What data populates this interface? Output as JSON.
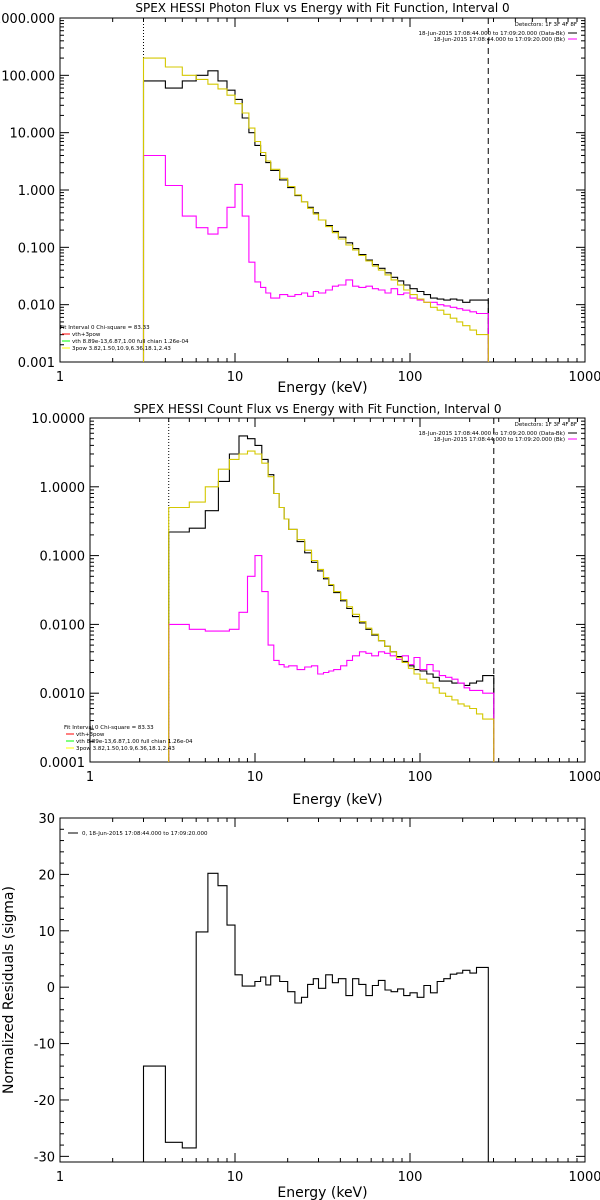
{
  "chart_data": [
    {
      "type": "line",
      "title": "SPEX HESSI Photon Flux vs Energy with Fit Function, Interval 0",
      "xlabel": "Energy (keV)",
      "ylabel": "",
      "xscale": "log",
      "yscale": "log",
      "xlim": [
        1,
        1000
      ],
      "ylim": [
        0.001,
        1000
      ],
      "x_ticks": [
        1,
        10,
        100,
        1000
      ],
      "x_tick_labels": [
        "1",
        "10",
        "100",
        "1000"
      ],
      "y_ticks": [
        0.001,
        0.01,
        0.1,
        1,
        10,
        100,
        1000
      ],
      "y_tick_labels": [
        "0.001",
        "0.010",
        "0.100",
        "1.000",
        "10.000",
        "100.000",
        "1000.000"
      ],
      "detectors": "Detectors: 1F 3F 4F 8F",
      "legend_top": [
        {
          "text": "18-Jun-2015 17:08:44.000 to 17:09:20.000 (Data-Bk)",
          "color": "#000000"
        },
        {
          "text": "18-Jun-2015 17:08:44.000 to 17:09:20.000 (Bk)",
          "color": "#ff00ff"
        }
      ],
      "legend_bottom": [
        {
          "text": "Fit Interval 0   Chi-square = 83.33",
          "color": null
        },
        {
          "text": "vth+3pow",
          "color": "#ff0000"
        },
        {
          "text": "vth 8.89e-13,6.87,1.00  full chian 1.26e-04",
          "color": "#00ff00"
        },
        {
          "text": "3pow 3.82,1.50,10.9,6.36,18.1,2.43",
          "color": "#ffff00"
        }
      ],
      "markers": [
        {
          "x": 3,
          "style": "dotted"
        },
        {
          "x": 280,
          "style": "dashed"
        }
      ],
      "bin_edges": [
        3.0,
        4.0,
        5.0,
        6.0,
        7.0,
        8.0,
        9.0,
        10.0,
        11.0,
        12.0,
        13.0,
        14.0,
        15.0,
        16.0,
        18.0,
        20.0,
        22.0,
        24.0,
        26.0,
        28.0,
        30.0,
        33.0,
        36.0,
        39.0,
        43.0,
        47.0,
        51.0,
        56.0,
        61.0,
        66.0,
        72.0,
        78.0,
        85.0,
        92.0,
        100.0,
        110.0,
        120.0,
        131.0,
        143.0,
        156.0,
        170.0,
        185.0,
        200.0,
        220.0,
        240.0,
        280.0
      ],
      "series": [
        {
          "name": "18-Jun-2015 17:08:44.000 to 17:09:20.000 (Data-Bk)",
          "color": "#000000",
          "values": [
            80,
            60,
            80,
            100,
            120,
            80,
            55,
            38,
            18,
            10,
            6.0,
            4.0,
            3.0,
            2.2,
            1.5,
            1.1,
            0.8,
            0.62,
            0.5,
            0.4,
            0.3,
            0.24,
            0.19,
            0.15,
            0.12,
            0.095,
            0.075,
            0.06,
            0.05,
            0.043,
            0.036,
            0.03,
            0.026,
            0.022,
            0.019,
            0.017,
            0.015,
            0.013,
            0.0125,
            0.012,
            0.0125,
            0.012,
            0.011,
            0.012,
            0.012
          ]
        },
        {
          "name": "18-Jun-2015 17:08:44.000 to 17:09:20.000 (Bk)",
          "color": "#ff00ff",
          "values": [
            4.0,
            1.2,
            0.35,
            0.22,
            0.17,
            0.22,
            0.5,
            1.25,
            0.35,
            0.055,
            0.025,
            0.02,
            0.016,
            0.013,
            0.015,
            0.014,
            0.015,
            0.016,
            0.014,
            0.017,
            0.016,
            0.018,
            0.021,
            0.022,
            0.027,
            0.021,
            0.02,
            0.021,
            0.019,
            0.018,
            0.016,
            0.019,
            0.015,
            0.016,
            0.013,
            0.012,
            0.011,
            0.011,
            0.01,
            0.0095,
            0.009,
            0.0085,
            0.008,
            0.0075,
            0.007
          ]
        },
        {
          "name": "3pow 3.82,1.50,10.9,6.36,18.1,2.43",
          "color": "#d4c800",
          "values": [
            200,
            140,
            100,
            85,
            70,
            58,
            45,
            32,
            22,
            12,
            7.0,
            4.5,
            3.2,
            2.3,
            1.6,
            1.15,
            0.82,
            0.62,
            0.48,
            0.38,
            0.3,
            0.23,
            0.18,
            0.14,
            0.11,
            0.09,
            0.072,
            0.058,
            0.047,
            0.04,
            0.033,
            0.027,
            0.022,
            0.018,
            0.015,
            0.0125,
            0.011,
            0.009,
            0.008,
            0.0068,
            0.0058,
            0.005,
            0.0043,
            0.0036,
            0.003
          ]
        }
      ]
    },
    {
      "type": "line",
      "title": "SPEX HESSI Count Flux vs Energy with Fit Function, Interval 0",
      "xlabel": "Energy (keV)",
      "ylabel": "",
      "xscale": "log",
      "yscale": "log",
      "xlim": [
        1,
        1000
      ],
      "ylim": [
        0.0001,
        10
      ],
      "x_ticks": [
        1,
        10,
        100,
        1000
      ],
      "x_tick_labels": [
        "1",
        "10",
        "100",
        "1000"
      ],
      "y_ticks": [
        0.0001,
        0.001,
        0.01,
        0.1,
        1,
        10
      ],
      "y_tick_labels": [
        "0.0001",
        "0.0010",
        "0.0100",
        "0.1000",
        "1.0000",
        "10.0000"
      ],
      "detectors": "Detectors: 1F 3F 4F 8F",
      "legend_top": [
        {
          "text": "18-Jun-2015 17:08:44.000 to 17:09:20.000 (Data-Bk)",
          "color": "#000000"
        },
        {
          "text": "18-Jun-2015 17:08:44.000 to 17:09:20.000 (Bk)",
          "color": "#ff00ff"
        }
      ],
      "legend_bottom": [
        {
          "text": "Fit Interval 0   Chi-square = 83.33",
          "color": null
        },
        {
          "text": "vth+3pow",
          "color": "#ff0000"
        },
        {
          "text": "vth 8.89e-13,6.87,1.00  full chian 1.26e-04",
          "color": "#00ff00"
        },
        {
          "text": "3pow 3.82,1.50,10.9,6.36,18.1,2.43",
          "color": "#ffff00"
        }
      ],
      "markers": [
        {
          "x": 3,
          "style": "dotted"
        },
        {
          "x": 280,
          "style": "dashed"
        }
      ],
      "bin_edges": [
        3.0,
        4.0,
        5.0,
        6.0,
        7.0,
        8.0,
        9.0,
        10.0,
        11.0,
        12.0,
        13.0,
        14.0,
        15.0,
        16.0,
        18.0,
        20.0,
        22.0,
        24.0,
        26.0,
        28.0,
        30.0,
        33.0,
        36.0,
        39.0,
        43.0,
        47.0,
        51.0,
        56.0,
        61.0,
        66.0,
        72.0,
        78.0,
        85.0,
        92.0,
        100.0,
        110.0,
        120.0,
        131.0,
        143.0,
        156.0,
        170.0,
        185.0,
        200.0,
        220.0,
        240.0,
        280.0
      ],
      "series": [
        {
          "name": "18-Jun-2015 17:08:44.000 to 17:09:20.000 (Data-Bk)",
          "color": "#000000",
          "values": [
            0.22,
            0.25,
            0.45,
            1.2,
            3.0,
            5.5,
            5.0,
            4.0,
            2.5,
            1.5,
            0.8,
            0.5,
            0.34,
            0.24,
            0.16,
            0.11,
            0.08,
            0.06,
            0.046,
            0.037,
            0.029,
            0.022,
            0.017,
            0.013,
            0.0105,
            0.0085,
            0.007,
            0.0058,
            0.0048,
            0.004,
            0.0034,
            0.0029,
            0.0025,
            0.0022,
            0.0021,
            0.0019,
            0.0017,
            0.0015,
            0.0015,
            0.0014,
            0.0014,
            0.0013,
            0.0014,
            0.0015,
            0.0018
          ]
        },
        {
          "name": "18-Jun-2015 17:08:44.000 to 17:09:20.000 (Bk)",
          "color": "#ff00ff",
          "values": [
            0.01,
            0.0085,
            0.008,
            0.008,
            0.0085,
            0.015,
            0.05,
            0.1,
            0.03,
            0.005,
            0.003,
            0.0026,
            0.0024,
            0.0025,
            0.0022,
            0.0024,
            0.0025,
            0.0019,
            0.002,
            0.0021,
            0.0022,
            0.0025,
            0.003,
            0.0035,
            0.004,
            0.0038,
            0.0035,
            0.004,
            0.0038,
            0.0035,
            0.0031,
            0.0035,
            0.0026,
            0.0033,
            0.0022,
            0.0026,
            0.0021,
            0.0018,
            0.0017,
            0.0016,
            0.0014,
            0.0012,
            0.0011,
            0.0011,
            0.001
          ]
        },
        {
          "name": "3pow 3.82,1.50,10.9,6.36,18.1,2.43",
          "color": "#d4c800",
          "values": [
            0.5,
            0.6,
            1.0,
            1.8,
            2.5,
            3.0,
            3.3,
            3.0,
            2.2,
            1.4,
            0.8,
            0.5,
            0.34,
            0.24,
            0.17,
            0.12,
            0.085,
            0.063,
            0.048,
            0.038,
            0.03,
            0.023,
            0.018,
            0.014,
            0.011,
            0.0088,
            0.0072,
            0.0058,
            0.0048,
            0.004,
            0.0033,
            0.0028,
            0.0023,
            0.0019,
            0.0016,
            0.0014,
            0.0012,
            0.001,
            0.0009,
            0.0008,
            0.0007,
            0.00065,
            0.0006,
            0.0005,
            0.00042
          ]
        }
      ]
    },
    {
      "type": "line",
      "title": "",
      "xlabel": "Energy (keV)",
      "ylabel": "Normalized Residuals (sigma)",
      "xscale": "log",
      "yscale": "linear",
      "xlim": [
        1,
        1000
      ],
      "ylim": [
        -31,
        30
      ],
      "x_ticks": [
        1,
        10,
        100,
        1000
      ],
      "x_tick_labels": [
        "1",
        "10",
        "100",
        "1000"
      ],
      "y_ticks": [
        -30,
        -20,
        -10,
        0,
        10,
        20,
        30
      ],
      "y_tick_labels": [
        "-30",
        "-20",
        "-10",
        "0",
        "10",
        "20",
        "30"
      ],
      "legend_top": [
        {
          "text": "0, 18-Jun-2015 17:08:44.000 to 17:09:20.000",
          "color": "#000000"
        }
      ],
      "bin_edges": [
        3.0,
        4.0,
        5.0,
        6.0,
        7.0,
        8.0,
        9.0,
        10.0,
        11.0,
        12.0,
        13.0,
        14.0,
        15.0,
        16.0,
        18.0,
        20.0,
        22.0,
        24.0,
        26.0,
        28.0,
        30.0,
        33.0,
        36.0,
        39.0,
        43.0,
        47.0,
        51.0,
        56.0,
        61.0,
        66.0,
        72.0,
        78.0,
        85.0,
        92.0,
        100.0,
        110.0,
        120.0,
        131.0,
        143.0,
        156.0,
        170.0,
        185.0,
        200.0,
        220.0,
        240.0,
        280.0
      ],
      "series": [
        {
          "name": "0, 18-Jun-2015 17:08:44.000 to 17:09:20.000",
          "color": "#000000",
          "values": [
            -14.0,
            -27.5,
            -28.5,
            9.8,
            20.2,
            18.0,
            11.0,
            2.2,
            0.2,
            0.2,
            1.0,
            1.8,
            0.4,
            2.0,
            1.0,
            -0.8,
            -2.8,
            -1.8,
            0.5,
            1.5,
            -0.2,
            2.2,
            0.8,
            1.5,
            -1.5,
            1.5,
            0.5,
            -1.5,
            0.3,
            1.2,
            -0.5,
            -0.8,
            -0.3,
            -1.5,
            -1.0,
            -1.8,
            0.3,
            -1.0,
            1.0,
            1.5,
            2.3,
            2.5,
            3.0,
            2.5,
            3.5
          ]
        }
      ]
    }
  ]
}
